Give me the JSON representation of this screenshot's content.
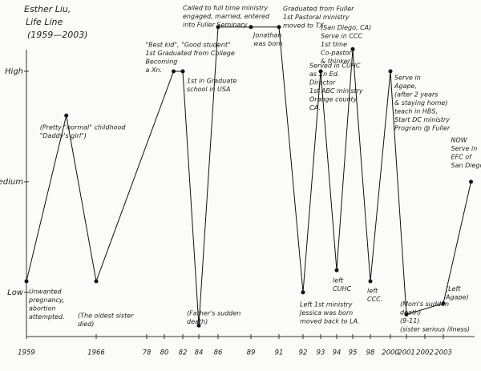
{
  "chart_data": {
    "type": "line",
    "title": [
      "Esther Liu,",
      "Life Line",
      "(1959—2003)"
    ],
    "color": "#111111",
    "x": [
      1959,
      1963,
      1966,
      1981,
      1982,
      1984,
      1986,
      1989,
      1991,
      1992,
      1993,
      1994,
      1995,
      1998,
      2000,
      2001,
      2003,
      2004.5
    ],
    "values": [
      1.1,
      2.6,
      1.1,
      3.0,
      3.0,
      0.7,
      3.4,
      3.4,
      3.4,
      1.0,
      3.0,
      1.2,
      3.2,
      1.1,
      3.0,
      0.8,
      0.9,
      2.0
    ],
    "point_labels": [
      [
        "Unwanted",
        "pregnancy,",
        "abortion",
        "attempted."
      ],
      [
        "(Pretty \"normal\" childhood",
        "\"Daddy's girl\")"
      ],
      [
        "(The oldest sister",
        "died)"
      ],
      [
        "\"Best kid\", \"Good student\"",
        "1st Graduated from College",
        "Becoming",
        "a Xn."
      ],
      [
        "1st in Graduate",
        "school in USA"
      ],
      [
        "(Father's sudden",
        "death)"
      ],
      [
        "Called to full time ministry",
        "engaged, married, entered",
        "into Fuller Seminary"
      ],
      [
        "Jonathan",
        "was born"
      ],
      [
        "Graduated from Fuller",
        "1st Pastoral ministry",
        "moved to TX."
      ],
      [
        "Left 1st ministry",
        "Jessica was born",
        "moved back to LA."
      ],
      [
        "Served in CUHC",
        "as Xn Ed.",
        "Director",
        "1st ABC ministry",
        "Orange county",
        "CA."
      ],
      [
        "left",
        "CUHC"
      ],
      [
        "(San Diego, CA)",
        "Serve in CCC",
        "1st time",
        "Co-pastor",
        "& thinker"
      ],
      [
        "left",
        "CCC."
      ],
      [
        "Serve in",
        "Agape,",
        "(after 2 years",
        "& staying home)",
        "teach in HBS,",
        "Start DC ministry",
        "Program @ Fuller"
      ],
      [
        "(Mom's sudden",
        "death)",
        "(9-11)",
        "(sister serious illness)"
      ],
      [
        "(Left",
        "Agape)"
      ],
      [
        "NOW",
        "Serve in",
        "EFC of",
        "San Diego"
      ]
    ],
    "ylim": [
      0.6,
      3.5
    ],
    "yticks": [
      {
        "value": 1,
        "label": "Low"
      },
      {
        "value": 2,
        "label": "Medium"
      },
      {
        "value": 3,
        "label": "High"
      }
    ],
    "xticks": [
      1959,
      1966,
      {
        "value": 1978,
        "label": "78"
      },
      {
        "value": 1980,
        "label": "80"
      },
      {
        "value": 1982,
        "label": "82"
      },
      {
        "value": 1984,
        "label": "84"
      },
      {
        "value": 1986,
        "label": "86"
      },
      {
        "value": 1989,
        "label": "89"
      },
      {
        "value": 1991,
        "label": "91"
      },
      {
        "value": 1992,
        "label": "92"
      },
      {
        "value": 1993,
        "label": "93"
      },
      {
        "value": 1994,
        "label": "94"
      },
      {
        "value": 1995,
        "label": "95"
      },
      {
        "value": 1998,
        "label": "98"
      },
      2000,
      2001,
      2002,
      2003
    ],
    "grid": false
  }
}
